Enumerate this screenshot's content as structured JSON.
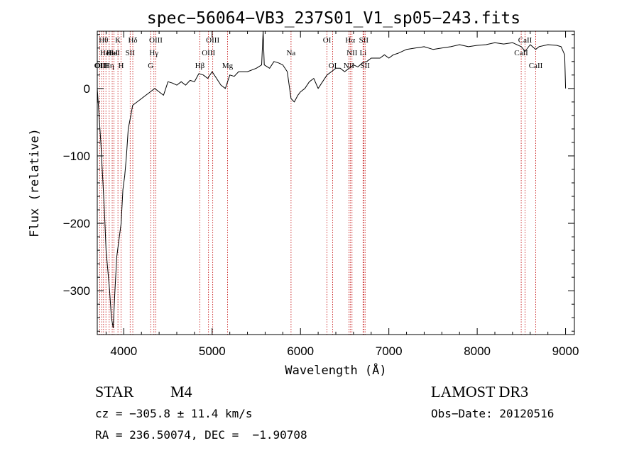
{
  "chart_data": {
    "type": "line",
    "title": "spec−56064−VB3_237S01_V1_sp05−243.fits",
    "xlabel": "Wavelength (Å)",
    "ylabel": "Flux (relative)",
    "xlim": [
      3700,
      9100
    ],
    "ylim": [
      -365,
      85
    ],
    "xticks": [
      {
        "value": 4000,
        "label": "4000"
      },
      {
        "value": 5000,
        "label": "5000"
      },
      {
        "value": 6000,
        "label": "6000"
      },
      {
        "value": 7000,
        "label": "7000"
      },
      {
        "value": 8000,
        "label": "8000"
      },
      {
        "value": 9000,
        "label": "9000"
      }
    ],
    "yticks": [
      {
        "value": 0,
        "label": "0"
      },
      {
        "value": -100,
        "label": "−100"
      },
      {
        "value": -200,
        "label": "−200"
      },
      {
        "value": -300,
        "label": "−300"
      }
    ],
    "grid": false,
    "series": [
      {
        "color": "#000000",
        "x": [
          3700,
          3740,
          3780,
          3800,
          3820,
          3840,
          3860,
          3880,
          3900,
          3920,
          3950,
          3970,
          3990,
          4010,
          4030,
          4050,
          4080,
          4100,
          4150,
          4200,
          4250,
          4300,
          4350,
          4400,
          4450,
          4500,
          4550,
          4600,
          4650,
          4700,
          4750,
          4800,
          4850,
          4900,
          4950,
          5000,
          5050,
          5100,
          5150,
          5200,
          5250,
          5300,
          5400,
          5500,
          5560,
          5577,
          5590,
          5650,
          5700,
          5750,
          5800,
          5850,
          5893,
          5930,
          5970,
          6000,
          6050,
          6100,
          6150,
          6200,
          6250,
          6300,
          6350,
          6400,
          6450,
          6500,
          6550,
          6600,
          6650,
          6700,
          6750,
          6800,
          6850,
          6900,
          6950,
          7000,
          7050,
          7100,
          7200,
          7300,
          7400,
          7500,
          7600,
          7700,
          7800,
          7900,
          8000,
          8100,
          8200,
          8300,
          8400,
          8500,
          8542,
          8600,
          8662,
          8700,
          8800,
          8900,
          8950,
          8990,
          9000
        ],
        "y": [
          0,
          -80,
          -180,
          -240,
          -270,
          -300,
          -340,
          -355,
          -300,
          -250,
          -220,
          -200,
          -150,
          -130,
          -100,
          -60,
          -40,
          -25,
          -20,
          -15,
          -10,
          -5,
          0,
          -5,
          -10,
          10,
          8,
          5,
          10,
          5,
          12,
          10,
          22,
          20,
          15,
          25,
          15,
          5,
          0,
          20,
          18,
          25,
          25,
          30,
          35,
          85,
          35,
          30,
          40,
          38,
          35,
          25,
          -15,
          -20,
          -10,
          -5,
          0,
          10,
          15,
          0,
          10,
          20,
          25,
          30,
          30,
          25,
          30,
          35,
          32,
          38,
          40,
          45,
          45,
          45,
          50,
          45,
          50,
          52,
          58,
          60,
          62,
          58,
          60,
          62,
          65,
          62,
          64,
          65,
          68,
          66,
          68,
          62,
          55,
          65,
          58,
          62,
          65,
          64,
          62,
          50,
          0
        ]
      }
    ],
    "lines": [
      {
        "x": 3727,
        "label": "OII",
        "row": 2
      },
      {
        "x": 3750,
        "label": "OIII",
        "row": 2
      },
      {
        "x": 3771,
        "label": "Hθ",
        "row": 0
      },
      {
        "x": 3798,
        "label": "HeI",
        "row": 1
      },
      {
        "x": 3835,
        "label": "Hη",
        "row": 2
      },
      {
        "x": 3869,
        "label": "HeI",
        "row": 1
      },
      {
        "x": 3889,
        "label": "HeI",
        "row": 1
      },
      {
        "x": 3934,
        "label": "K",
        "row": 0
      },
      {
        "x": 3969,
        "label": "H",
        "row": 2
      },
      {
        "x": 4072,
        "label": "SII",
        "row": 1
      },
      {
        "x": 4102,
        "label": "Hδ",
        "row": 0
      },
      {
        "x": 4305,
        "label": "G",
        "row": 2
      },
      {
        "x": 4341,
        "label": "Hγ",
        "row": 1
      },
      {
        "x": 4363,
        "label": "OIII",
        "row": 0
      },
      {
        "x": 4861,
        "label": "Hβ",
        "row": 2
      },
      {
        "x": 4959,
        "label": "OIII",
        "row": 1
      },
      {
        "x": 5007,
        "label": "OIII",
        "row": 0
      },
      {
        "x": 5175,
        "label": "Mg",
        "row": 2
      },
      {
        "x": 5893,
        "label": "Na",
        "row": 1
      },
      {
        "x": 6300,
        "label": "OI",
        "row": 0
      },
      {
        "x": 6364,
        "label": "OI",
        "row": 2
      },
      {
        "x": 6548,
        "label": "NII",
        "row": 2
      },
      {
        "x": 6563,
        "label": "Hα",
        "row": 0
      },
      {
        "x": 6583,
        "label": "NII",
        "row": 1
      },
      {
        "x": 6708,
        "label": "Li",
        "row": 1
      },
      {
        "x": 6716,
        "label": "SII",
        "row": 0
      },
      {
        "x": 6731,
        "label": "SII",
        "row": 2
      },
      {
        "x": 8498,
        "label": "CaII",
        "row": 1
      },
      {
        "x": 8542,
        "label": "CaII",
        "row": 0
      },
      {
        "x": 8662,
        "label": "CaII",
        "row": 2
      }
    ]
  },
  "info": {
    "object_type": "STAR",
    "subclass": "M4",
    "survey": "LAMOST DR3",
    "cz": "cz = −305.8 ± 11.4 km/s",
    "obs_date": "Obs−Date: 20120516",
    "radec": "RA = 236.50074, DEC =  −1.90708"
  }
}
